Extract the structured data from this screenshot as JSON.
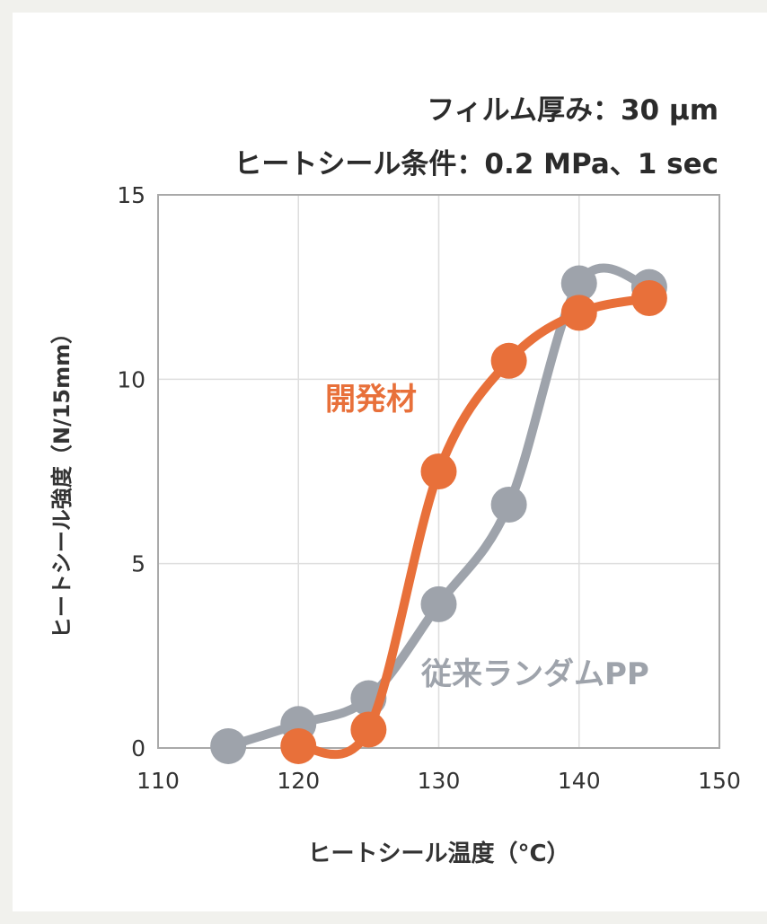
{
  "conditions": {
    "line1": "フィルム厚み：30 µm",
    "line2": "ヒートシール条件：0.2 MPa、1 sec"
  },
  "chart_data": {
    "type": "line",
    "title": "",
    "xlabel": "ヒートシール温度（°C）",
    "ylabel": "ヒートシール強度（N/15mm）",
    "xlim": [
      110,
      150
    ],
    "ylim": [
      0,
      15
    ],
    "xticks": [
      110,
      120,
      130,
      140,
      150
    ],
    "yticks": [
      0,
      5,
      10,
      15
    ],
    "grid": true,
    "legend": "none (series labeled directly on plot)",
    "series": [
      {
        "name": "従来ランダムPP",
        "color": "#9ea3ab",
        "x": [
          115,
          120,
          125,
          130,
          135,
          140,
          145
        ],
        "y": [
          0.05,
          0.65,
          1.35,
          3.9,
          6.6,
          12.6,
          12.5
        ]
      },
      {
        "name": "開発材",
        "color": "#e8703a",
        "x": [
          120,
          125,
          130,
          135,
          140,
          145
        ],
        "y": [
          0.05,
          0.5,
          7.5,
          10.5,
          11.8,
          12.2
        ]
      }
    ]
  }
}
